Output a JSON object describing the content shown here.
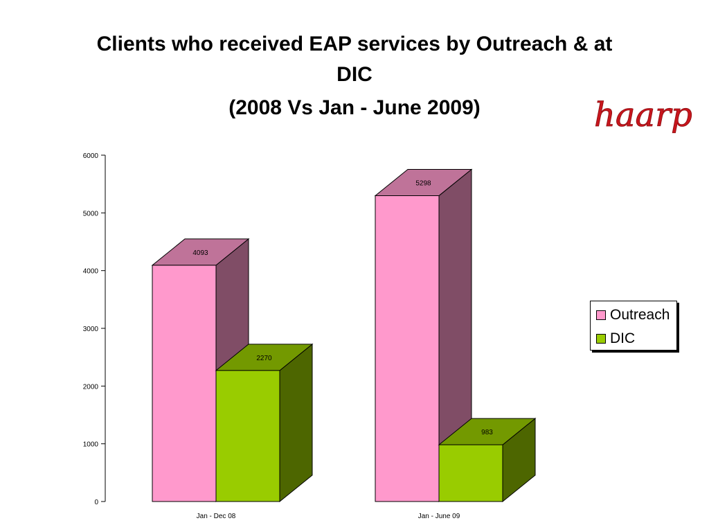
{
  "header": {
    "title_line1": "Clients who received EAP services by Outreach & at",
    "title_line2": "DIC",
    "subtitle": "(2008 Vs Jan - June 2009)"
  },
  "logo": {
    "text": "haarp",
    "color": "#c8161d"
  },
  "legend": {
    "items": [
      "Outreach",
      "DIC"
    ]
  },
  "colors": {
    "outreach_front": "#ff99cc",
    "outreach_top": "#bf7399",
    "outreach_side": "#804d66",
    "dic_front": "#99cc00",
    "dic_top": "#739900",
    "dic_side": "#4d6600"
  },
  "chart_data": {
    "type": "bar",
    "title": "Clients who received EAP services by Outreach & at DIC",
    "subtitle": "(2008 Vs Jan - June 2009)",
    "categories": [
      "Jan - Dec 08",
      "Jan - June 09"
    ],
    "series": [
      {
        "name": "Outreach",
        "values": [
          4093,
          5298
        ]
      },
      {
        "name": "DIC",
        "values": [
          2270,
          983
        ]
      }
    ],
    "ylim": [
      0,
      6000
    ],
    "yticks": [
      0,
      1000,
      2000,
      3000,
      4000,
      5000,
      6000
    ],
    "legend": "right",
    "grid": false,
    "style": "3d"
  }
}
